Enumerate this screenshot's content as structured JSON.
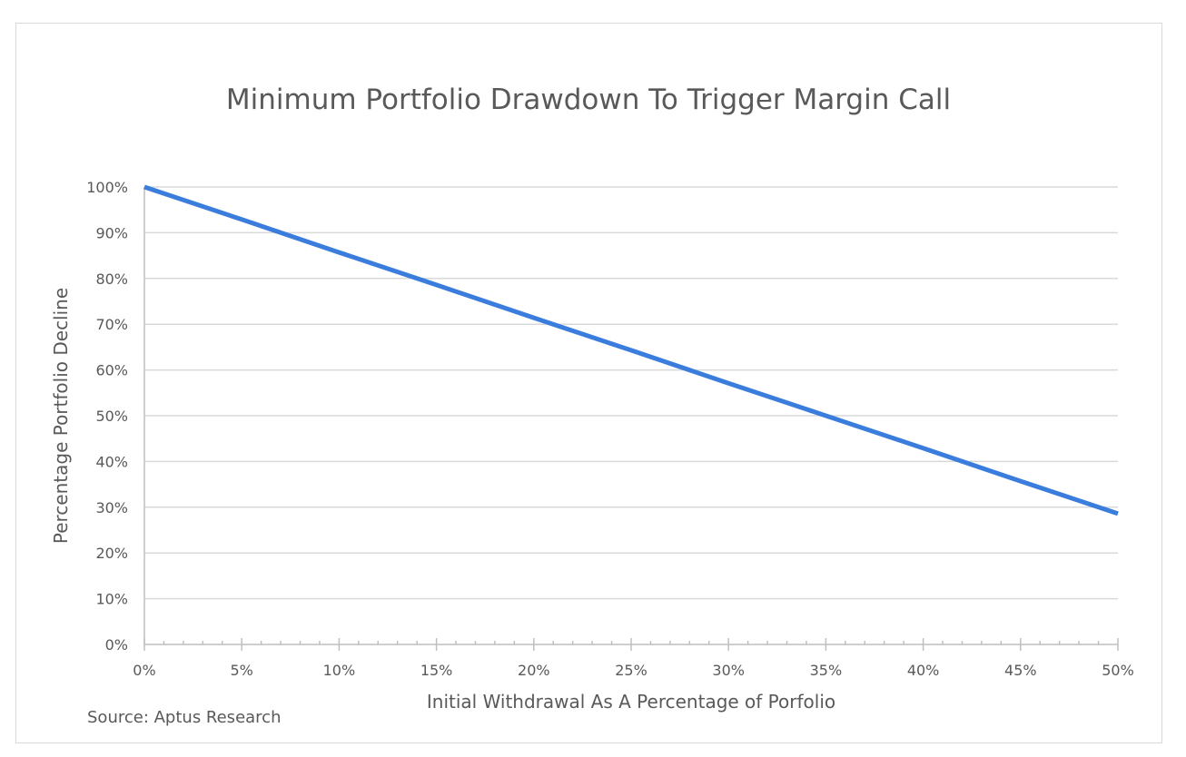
{
  "chart_data": {
    "type": "line",
    "title": "Minimum Portfolio Drawdown To Trigger Margin Call",
    "xlabel": "Initial Withdrawal As A Percentage of Porfolio",
    "ylabel": "Percentage Portfolio Decline",
    "source": "Source: Aptus Research",
    "xlim": [
      0,
      50
    ],
    "ylim": [
      0,
      100
    ],
    "xticks": [
      "0%",
      "5%",
      "10%",
      "15%",
      "20%",
      "25%",
      "30%",
      "35%",
      "40%",
      "45%",
      "50%"
    ],
    "yticks": [
      "0%",
      "10%",
      "20%",
      "30%",
      "40%",
      "50%",
      "60%",
      "70%",
      "80%",
      "90%",
      "100%"
    ],
    "grid": "horizontal",
    "series": [
      {
        "name": "Minimum Portfolio Drawdown",
        "color": "#3b7ddd",
        "x": [
          0,
          5,
          10,
          15,
          20,
          25,
          30,
          35,
          40,
          45,
          50
        ],
        "y": [
          100,
          92.9,
          85.7,
          78.6,
          71.4,
          64.3,
          57.1,
          50,
          42.9,
          35.7,
          28.6
        ]
      }
    ]
  }
}
